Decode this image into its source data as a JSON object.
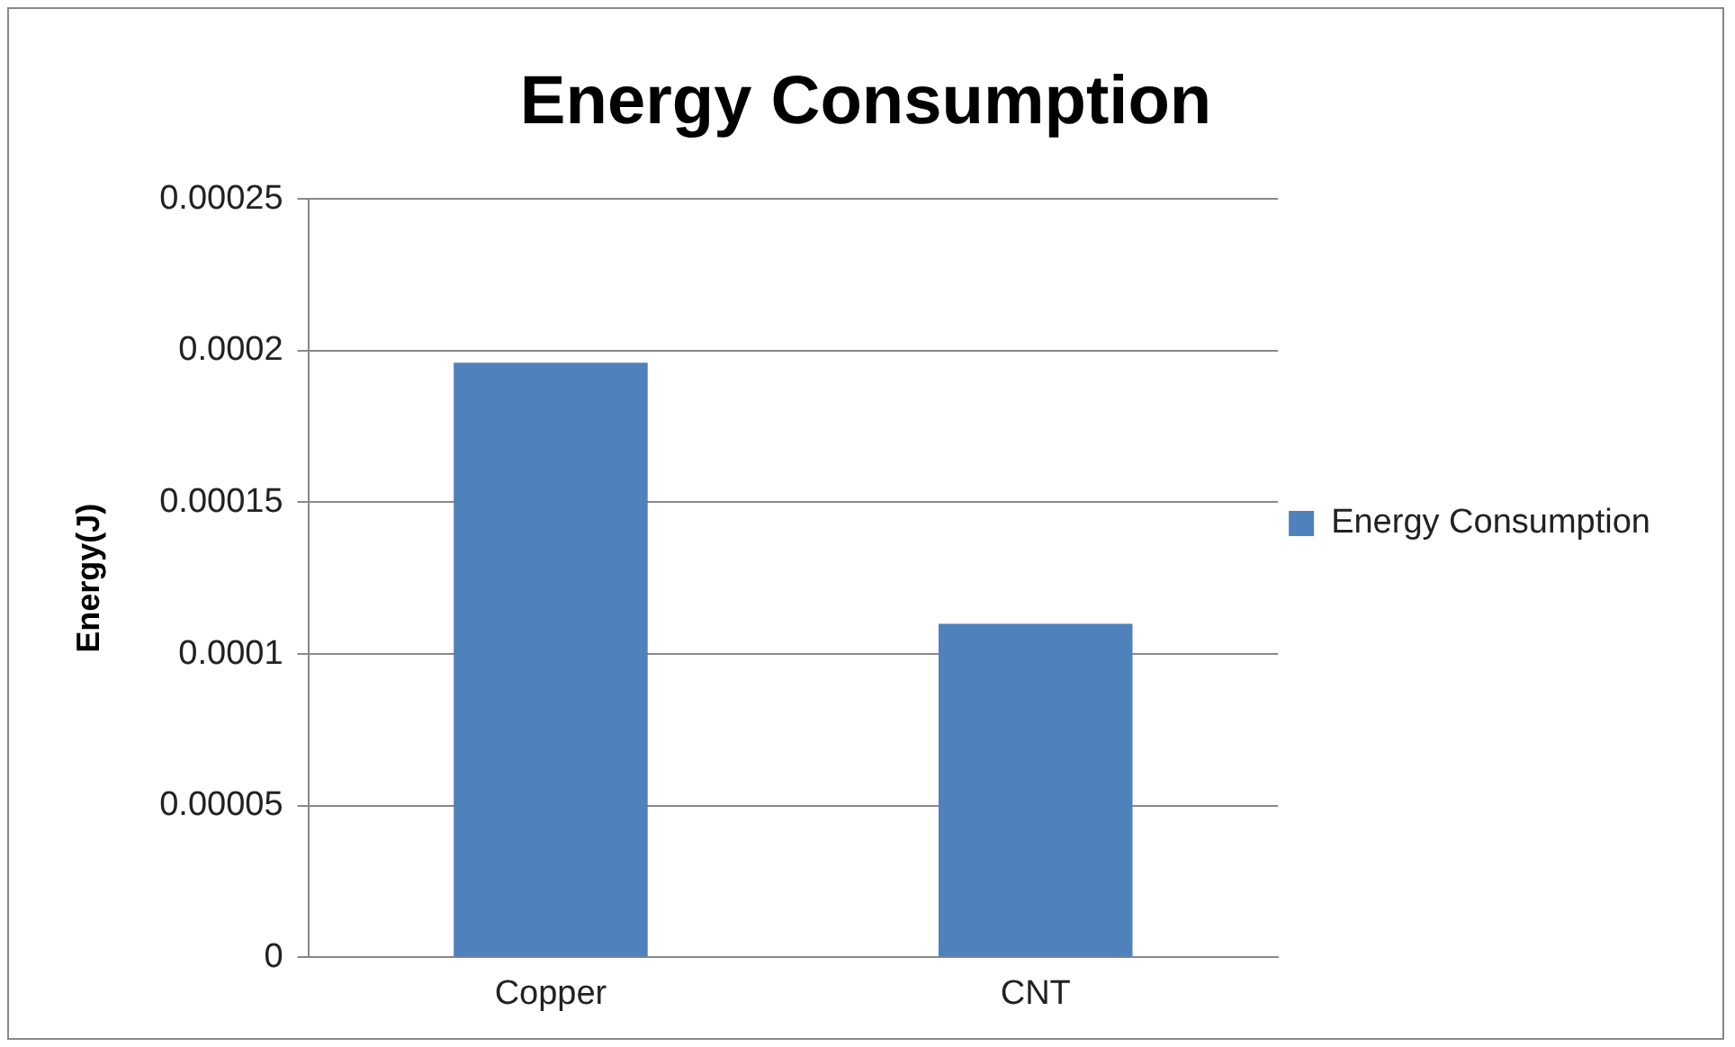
{
  "chart_data": {
    "type": "bar",
    "title": "Energy Consumption",
    "ylabel": "Energy(J)",
    "categories": [
      "Copper",
      "CNT"
    ],
    "series": [
      {
        "name": "Energy Consumption",
        "color": "#4f81bd",
        "values": [
          0.000196,
          0.00011
        ]
      }
    ],
    "ylim": [
      0,
      0.00025
    ],
    "yticks": [
      0,
      {
        "value": 5e-05,
        "label": "0.00005"
      },
      0.0001,
      0.00015,
      0.0002,
      0.00025
    ],
    "grid": "y",
    "legend": "right"
  }
}
